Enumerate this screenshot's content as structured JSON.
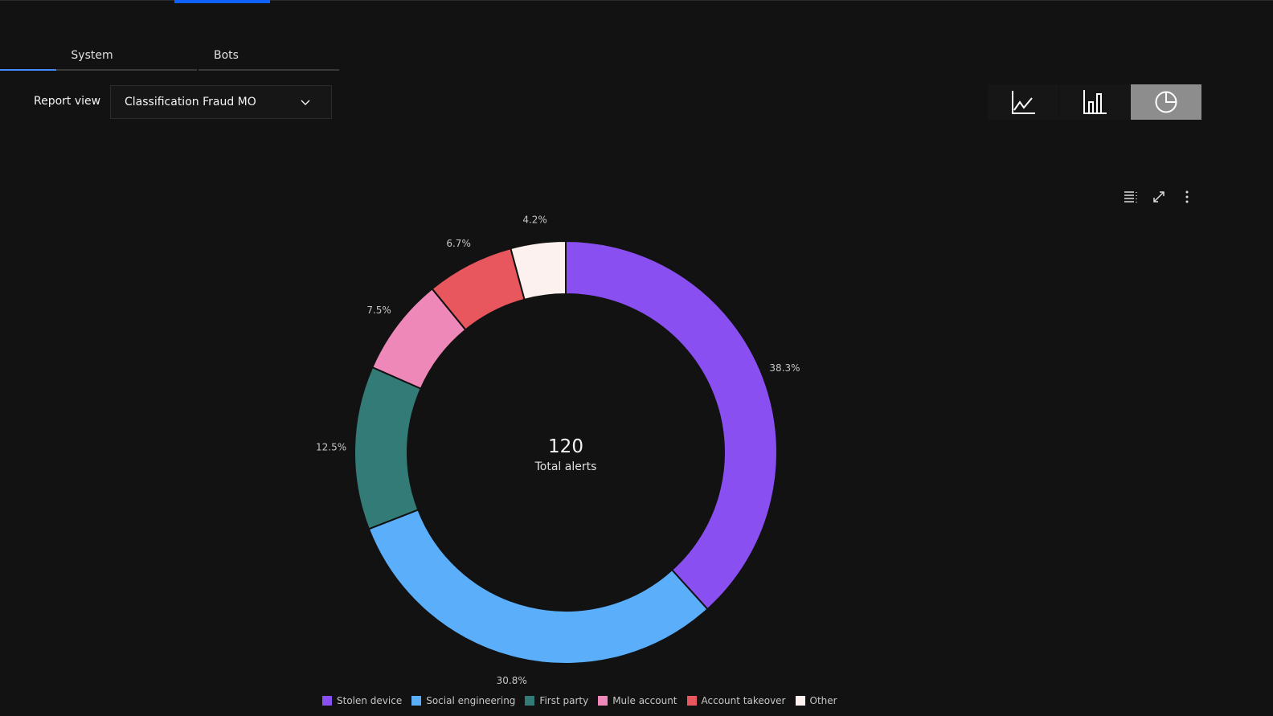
{
  "tabs": [
    {
      "label": "System",
      "active": true
    },
    {
      "label": "Bots",
      "active": false
    }
  ],
  "report_view": {
    "label": "Report view",
    "value": "Classification Fraud MO"
  },
  "chart_switcher": [
    {
      "icon": "line-chart-icon",
      "active": false
    },
    {
      "icon": "bar-chart-icon",
      "active": false
    },
    {
      "icon": "pie-chart-icon",
      "active": true
    }
  ],
  "toolbar": {
    "icons": [
      "table-view-icon",
      "maximize-icon",
      "overflow-menu-icon"
    ]
  },
  "chart_data": {
    "type": "pie",
    "variant": "donut",
    "center": {
      "value": "120",
      "label": "Total alerts"
    },
    "categories": [
      "Stolen device",
      "Social engineering",
      "First party",
      "Mule account",
      "Account takeover",
      "Other"
    ],
    "values": [
      38.3,
      30.8,
      12.5,
      7.5,
      6.7,
      4.2
    ],
    "labels": [
      "38.3%",
      "30.8%",
      "12.5%",
      "7.5%",
      "6.7%",
      "4.2%"
    ],
    "colors": [
      "#8a4ff0",
      "#5aaefa",
      "#337b77",
      "#ee88b8",
      "#e8575d",
      "#fcf1ee"
    ],
    "legend": "bottom"
  }
}
